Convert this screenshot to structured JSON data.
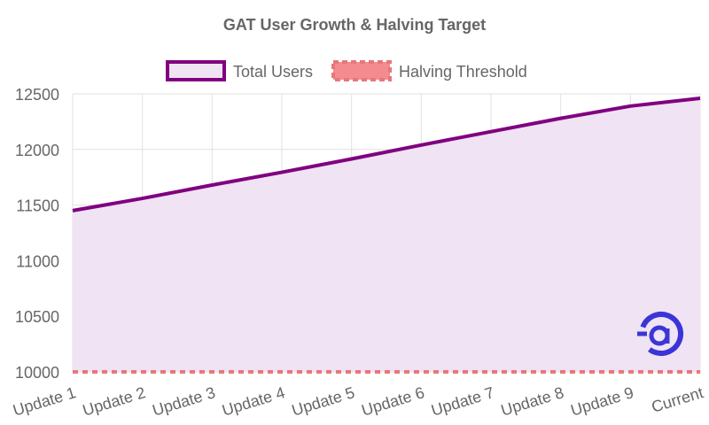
{
  "chart_data": {
    "type": "area",
    "title": "GAT User Growth & Halving Target",
    "categories": [
      "Update 1",
      "Update 2",
      "Update 3",
      "Update 4",
      "Update 5",
      "Update 6",
      "Update 7",
      "Update 8",
      "Update 9",
      "Current"
    ],
    "series": [
      {
        "name": "Total Users",
        "values": [
          11450,
          11560,
          11680,
          11795,
          11915,
          12040,
          12160,
          12280,
          12390,
          12460
        ],
        "color": "#800080",
        "fill": "#f0e3f3"
      },
      {
        "name": "Halving Threshold",
        "values": [
          10000,
          10000,
          10000,
          10000,
          10000,
          10000,
          10000,
          10000,
          10000,
          10000
        ],
        "color": "#e8777b",
        "dashed": true
      }
    ],
    "ylim": [
      10000,
      12500
    ],
    "yticks": [
      10000,
      10500,
      11000,
      11500,
      12000,
      12500
    ],
    "grid": true,
    "legend": "top-center",
    "xlabel": "",
    "ylabel": ""
  },
  "logo": {
    "name": "gat-logo-icon",
    "color": "#3b35d8"
  }
}
